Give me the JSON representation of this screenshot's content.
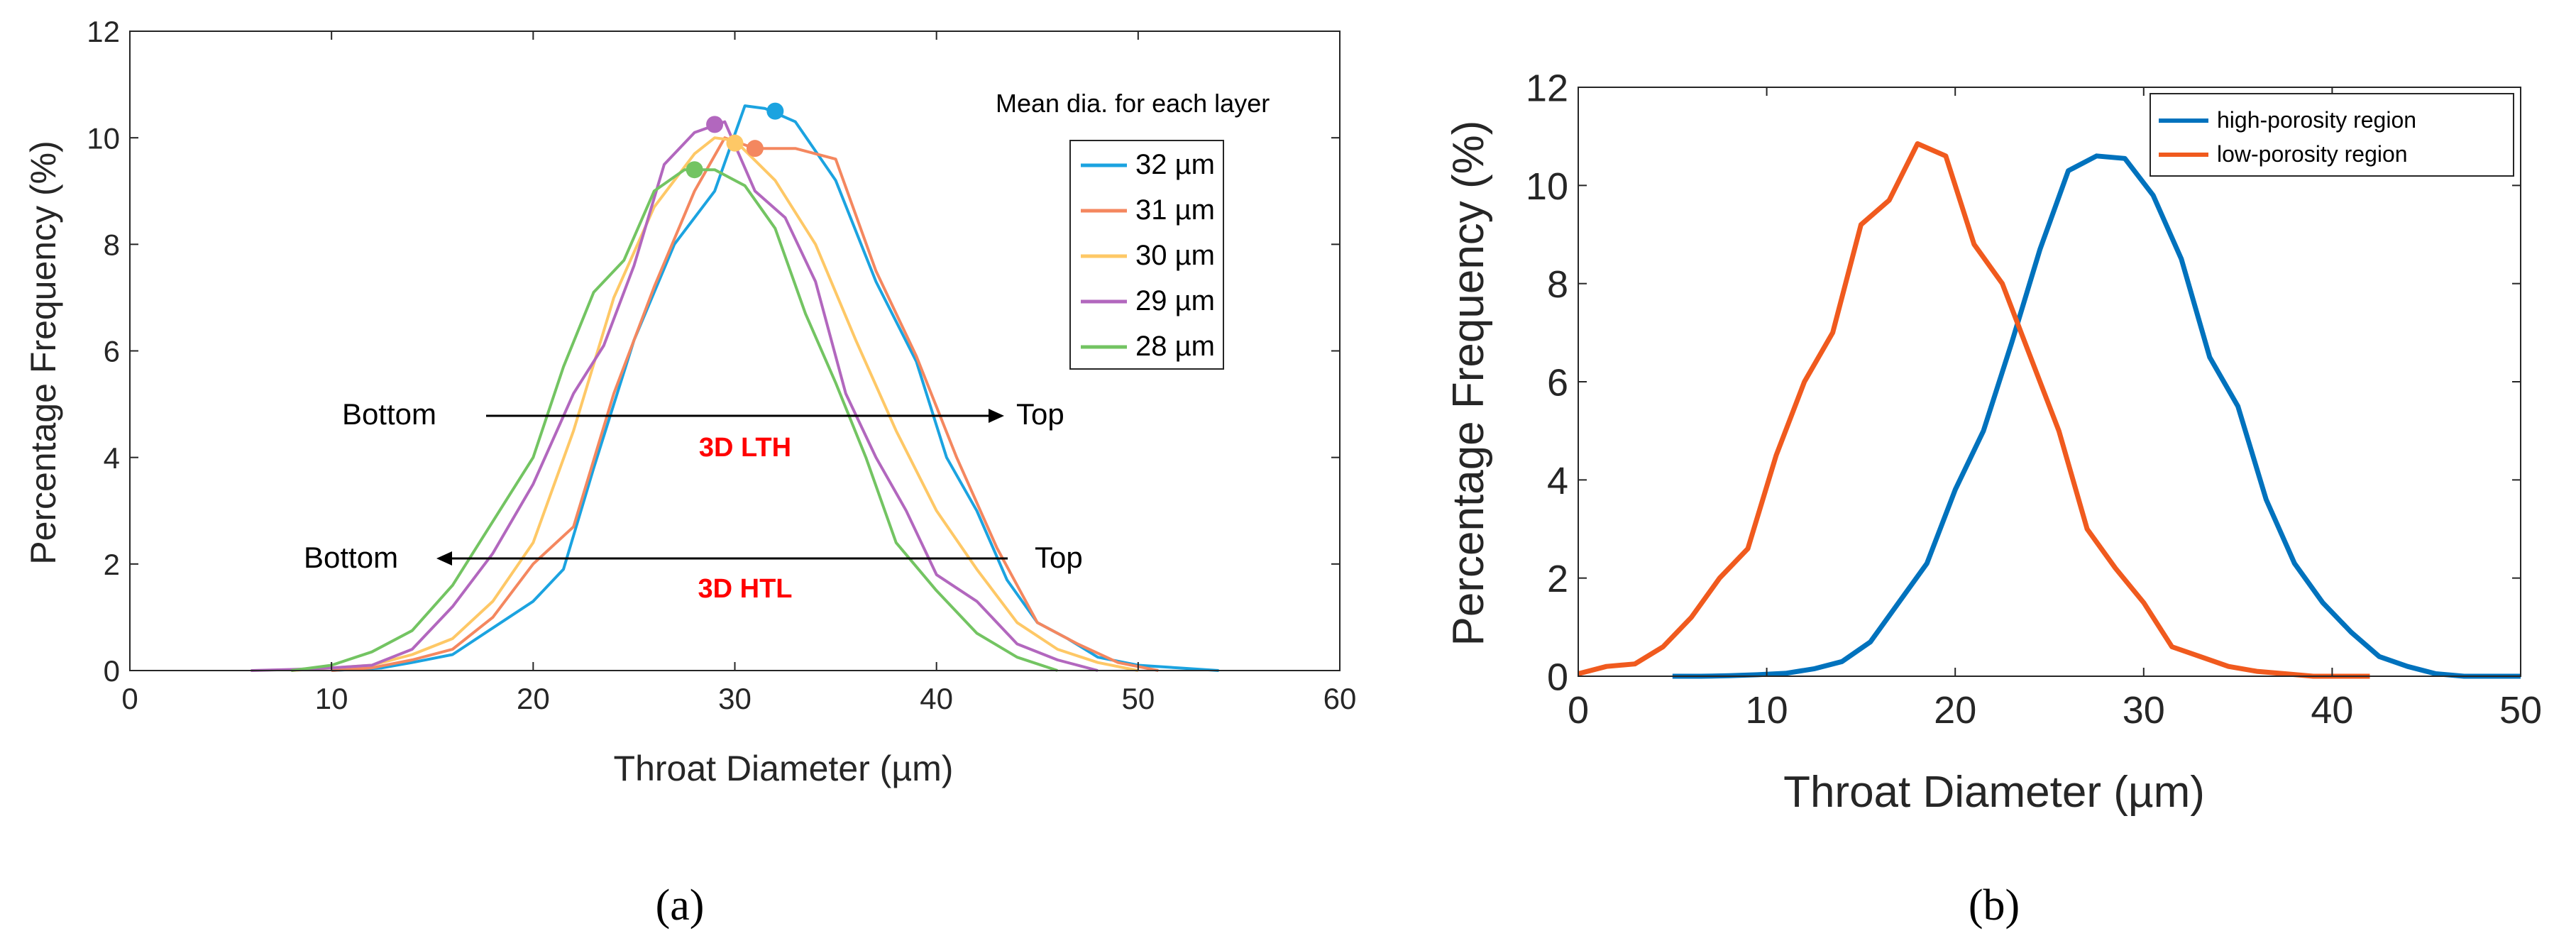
{
  "chart_data": [
    {
      "id": "a",
      "type": "line",
      "caption": "(a)",
      "xlabel": "Throat Diameter (µm)",
      "ylabel": "Percentage Frequency (%)",
      "xlim": [
        0,
        60
      ],
      "ylim": [
        0,
        12
      ],
      "xticks": [
        0,
        10,
        20,
        30,
        40,
        50,
        60
      ],
      "yticks": [
        0,
        2,
        4,
        6,
        8,
        10,
        12
      ],
      "grid": false,
      "legend_title": "Mean dia. for each layer",
      "legend_position": "right",
      "series": [
        {
          "name": "32 µm",
          "color": "#1ba3e0",
          "x": [
            10,
            12.5,
            14,
            16,
            18,
            20,
            21.5,
            23,
            25,
            27,
            29,
            30.5,
            31.5,
            33,
            35,
            37,
            39,
            40.5,
            42,
            43.5,
            45,
            46.5,
            48,
            50,
            52,
            54
          ],
          "y": [
            0,
            0.05,
            0.15,
            0.3,
            0.8,
            1.3,
            1.9,
            3.8,
            6.2,
            8,
            9,
            10.6,
            10.55,
            10.3,
            9.2,
            7.3,
            5.8,
            4,
            3,
            1.7,
            0.9,
            0.6,
            0.25,
            0.1,
            0.05,
            0
          ]
        },
        {
          "name": "31 µm",
          "color": "#f4875f",
          "x": [
            10,
            12,
            14,
            16,
            18,
            20,
            22,
            24,
            26,
            28,
            29.5,
            31,
            33,
            35,
            37,
            39,
            41,
            43,
            45,
            47,
            49,
            51
          ],
          "y": [
            0,
            0.05,
            0.2,
            0.4,
            1,
            2,
            2.7,
            5.2,
            7.2,
            9,
            10,
            9.8,
            9.8,
            9.6,
            7.5,
            5.9,
            4,
            2.3,
            0.9,
            0.5,
            0.15,
            0
          ]
        },
        {
          "name": "30 µm",
          "color": "#fec866",
          "x": [
            8,
            10,
            12,
            14,
            16,
            18,
            20,
            22,
            24,
            26,
            28,
            29,
            30,
            32,
            34,
            36,
            38,
            40,
            42,
            44,
            46,
            48,
            50
          ],
          "y": [
            0,
            0.05,
            0.1,
            0.3,
            0.6,
            1.3,
            2.4,
            4.5,
            7,
            8.7,
            9.7,
            10,
            9.95,
            9.2,
            8,
            6.2,
            4.5,
            3,
            1.9,
            0.9,
            0.4,
            0.15,
            0
          ]
        },
        {
          "name": "29 µm",
          "color": "#b267be",
          "x": [
            6,
            8,
            10,
            12,
            14,
            16,
            18,
            20,
            22,
            23.5,
            25,
            26.5,
            28,
            29.5,
            31,
            32.5,
            34,
            35.5,
            37,
            38.5,
            40,
            42,
            44,
            46,
            48
          ],
          "y": [
            0,
            0.02,
            0.05,
            0.1,
            0.4,
            1.2,
            2.2,
            3.5,
            5.2,
            6.1,
            7.6,
            9.5,
            10.1,
            10.3,
            9,
            8.5,
            7.3,
            5.2,
            4,
            3,
            1.8,
            1.3,
            0.5,
            0.2,
            0
          ]
        },
        {
          "name": "28 µm",
          "color": "#73c462",
          "x": [
            8,
            10,
            12,
            14,
            16,
            18,
            20,
            21.5,
            23,
            24.5,
            26,
            27.5,
            29,
            30.5,
            32,
            33.5,
            35,
            36.5,
            38,
            40,
            42,
            44,
            46
          ],
          "y": [
            0,
            0.1,
            0.35,
            0.75,
            1.6,
            2.8,
            4,
            5.7,
            7.1,
            7.7,
            9,
            9.4,
            9.4,
            9.1,
            8.3,
            6.7,
            5.4,
            4,
            2.4,
            1.5,
            0.7,
            0.25,
            0
          ]
        }
      ],
      "mean_markers": [
        {
          "x": 32,
          "y": 10.5,
          "color": "#1ba3e0"
        },
        {
          "x": 31,
          "y": 9.8,
          "color": "#f4875f"
        },
        {
          "x": 30,
          "y": 9.9,
          "color": "#fec866"
        },
        {
          "x": 29,
          "y": 10.25,
          "color": "#b267be"
        },
        {
          "x": 28,
          "y": 9.4,
          "color": "#73c462"
        }
      ],
      "annotations": [
        {
          "left": "Bottom",
          "right": "Top",
          "label": "3D LTH",
          "direction": "left-to-right"
        },
        {
          "left": "Bottom",
          "right": "Top",
          "label": "3D HTL",
          "direction": "right-to-left"
        }
      ]
    },
    {
      "id": "b",
      "type": "line",
      "caption": "(b)",
      "xlabel": "Throat Diameter (µm)",
      "ylabel": "Percentage Frequency (%)",
      "xlim": [
        0,
        50
      ],
      "ylim": [
        0,
        12
      ],
      "xticks": [
        0,
        10,
        20,
        30,
        40,
        50
      ],
      "yticks": [
        0,
        2,
        4,
        6,
        8,
        10,
        12
      ],
      "grid": false,
      "legend_position": "top-right",
      "series": [
        {
          "name": "high-porosity region",
          "color": "#0072bd",
          "x": [
            5,
            6.5,
            8,
            9.5,
            11,
            12.5,
            14,
            15.5,
            17,
            18.5,
            20,
            21.5,
            23,
            24.5,
            26,
            27.5,
            29,
            30.5,
            32,
            33.5,
            35,
            36.5,
            38,
            39.5,
            41,
            42.5,
            44,
            45.5,
            47,
            48.5,
            50
          ],
          "y": [
            0,
            0,
            0.01,
            0.03,
            0.06,
            0.15,
            0.3,
            0.7,
            1.5,
            2.3,
            3.8,
            5,
            6.8,
            8.7,
            10.3,
            10.6,
            10.55,
            9.8,
            8.5,
            6.5,
            5.5,
            3.6,
            2.3,
            1.5,
            0.9,
            0.4,
            0.2,
            0.05,
            0,
            0,
            0
          ]
        },
        {
          "name": "low-porosity region",
          "color": "#f05a1e",
          "x": [
            0,
            1.5,
            3,
            4.5,
            6,
            7.5,
            9,
            10.5,
            12,
            13.5,
            15,
            16.5,
            18,
            19.5,
            21,
            22.5,
            24,
            25.5,
            27,
            28.5,
            30,
            31.5,
            33,
            34.5,
            36,
            37.5,
            39,
            40.5,
            42
          ],
          "y": [
            0.05,
            0.2,
            0.25,
            0.6,
            1.2,
            2,
            2.6,
            4.5,
            6,
            7,
            9.2,
            9.7,
            10.85,
            10.6,
            8.8,
            8,
            6.5,
            5,
            3,
            2.2,
            1.5,
            0.6,
            0.4,
            0.2,
            0.1,
            0.05,
            0,
            0,
            0
          ]
        }
      ]
    }
  ]
}
